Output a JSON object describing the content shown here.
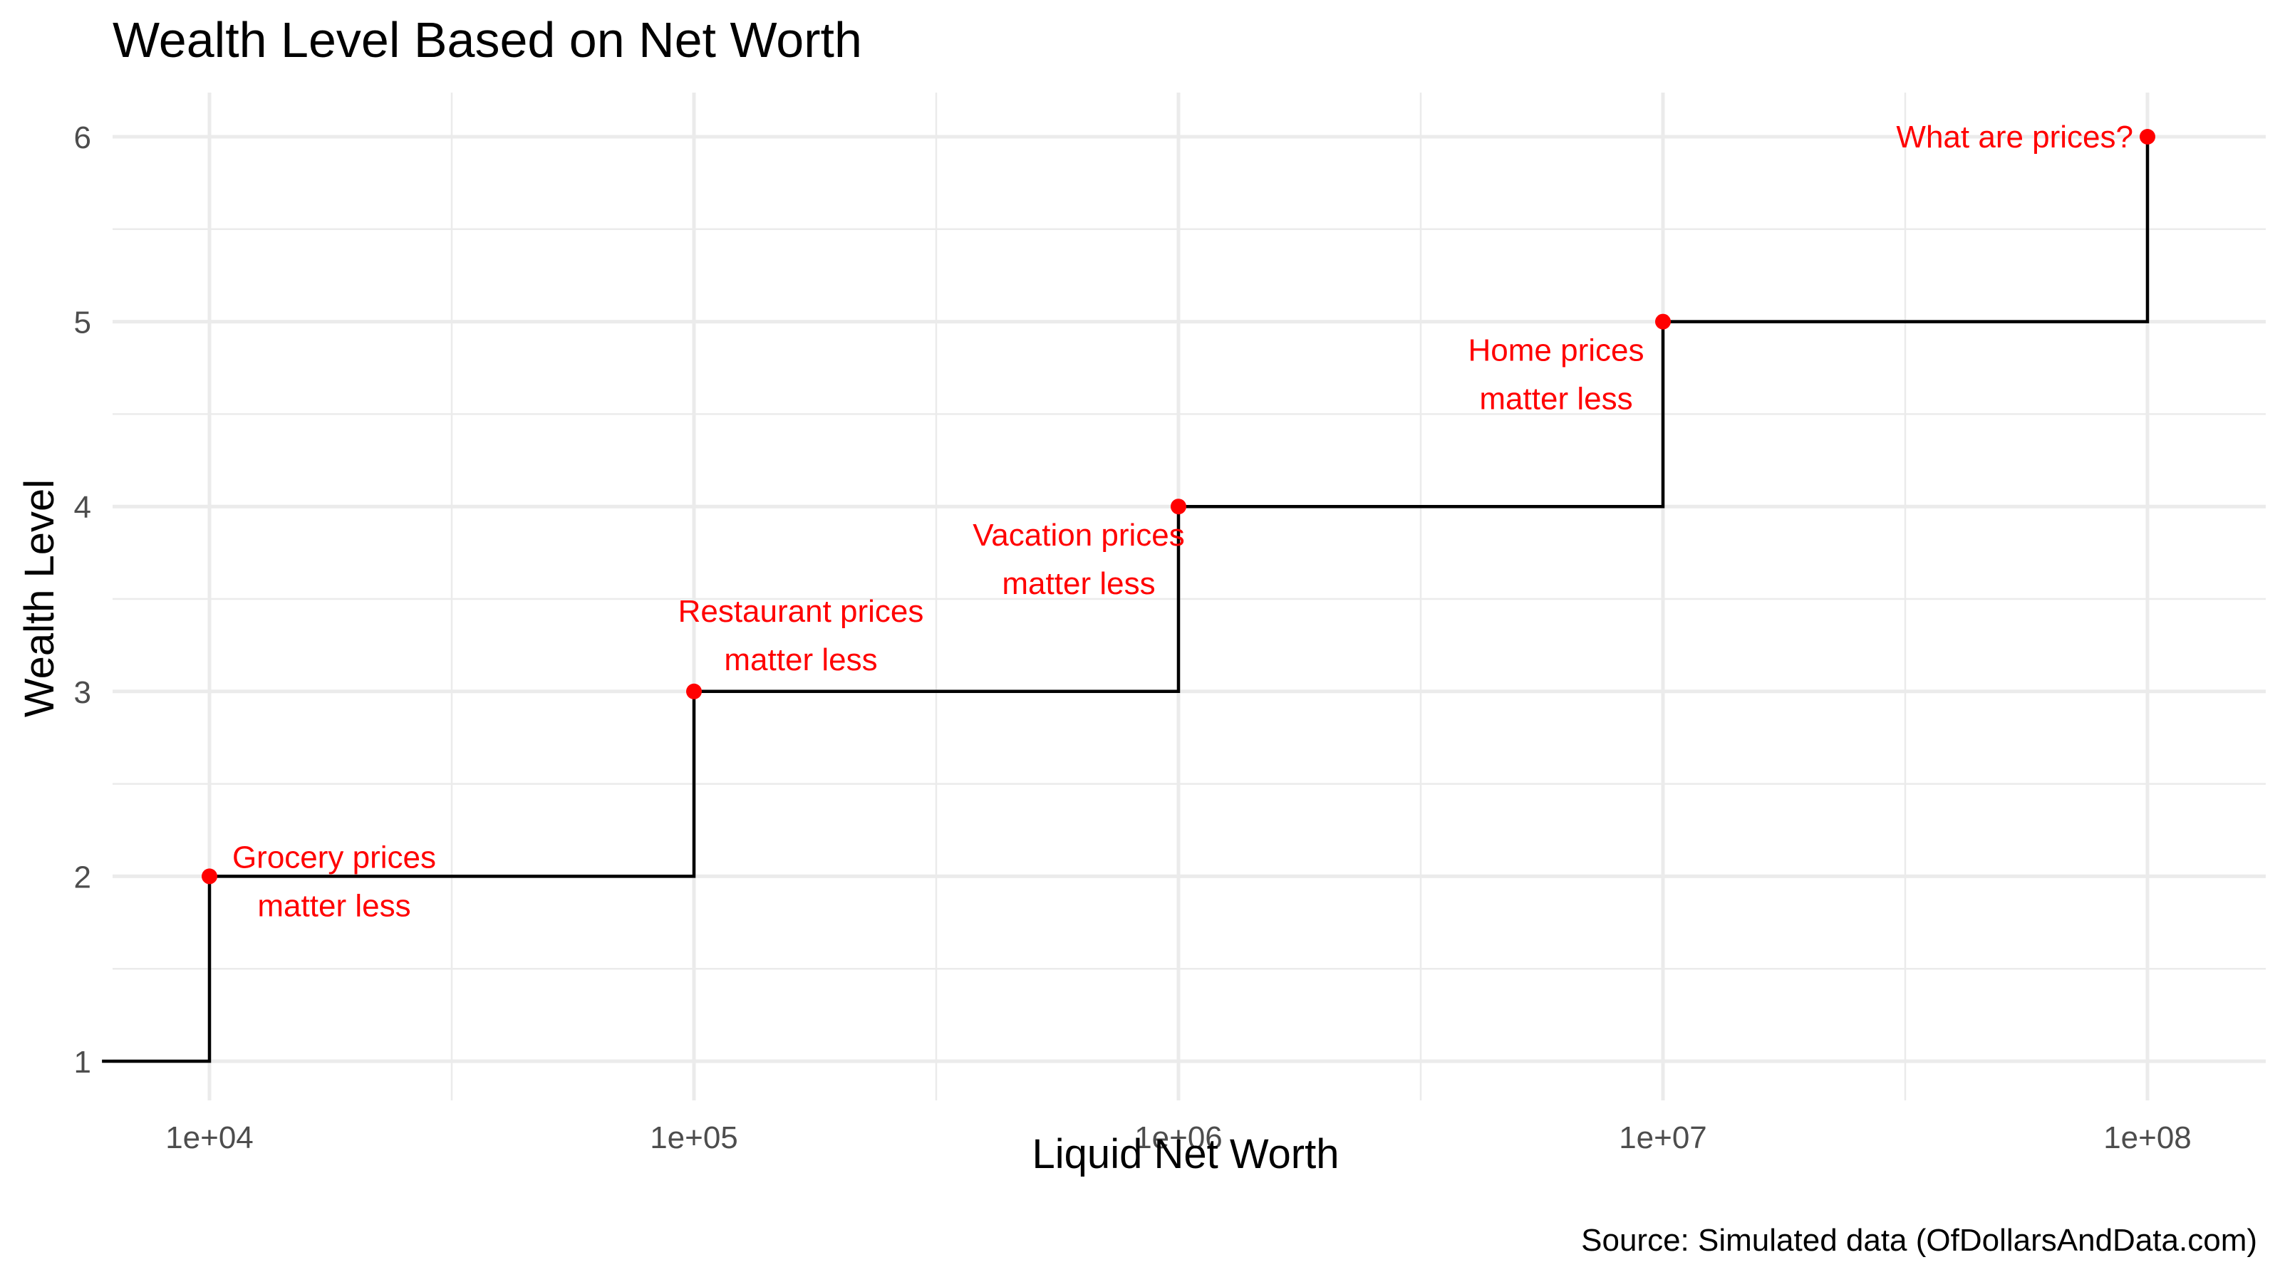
{
  "chart_data": {
    "type": "line",
    "title": "Wealth Level Based on Net Worth",
    "xlabel": "Liquid Net Worth",
    "ylabel": "Wealth Level",
    "caption": "Source: Simulated data (OfDollarsAndData.com)",
    "x_scale": "log10",
    "x_ticks": [
      10000,
      100000,
      1000000,
      10000000,
      100000000
    ],
    "x_tick_labels": [
      "1e+04",
      "1e+05",
      "1e+06",
      "1e+07",
      "1e+08"
    ],
    "y_ticks": [
      1,
      2,
      3,
      4,
      5,
      6
    ],
    "y_tick_labels": [
      "1",
      "2",
      "3",
      "4",
      "5",
      "6"
    ],
    "ylim": [
      0.8,
      6.25
    ],
    "grid": true,
    "line_color": "#000000",
    "point_color": "#ff0000",
    "step_series": {
      "x": [
        6000,
        10000,
        100000,
        1000000,
        10000000,
        100000000
      ],
      "y": [
        1,
        2,
        3,
        4,
        5,
        6
      ]
    },
    "points": [
      {
        "x": 10000,
        "y": 2,
        "label_lines": [
          "Grocery prices",
          "matter less"
        ]
      },
      {
        "x": 100000,
        "y": 3,
        "label_lines": [
          "Restaurant prices",
          "matter less"
        ]
      },
      {
        "x": 1000000,
        "y": 4,
        "label_lines": [
          "Vacation prices",
          "matter less"
        ]
      },
      {
        "x": 10000000,
        "y": 5,
        "label_lines": [
          "Home prices",
          "matter less"
        ]
      },
      {
        "x": 100000000,
        "y": 6,
        "label_lines": [
          "What are prices?"
        ]
      }
    ]
  }
}
